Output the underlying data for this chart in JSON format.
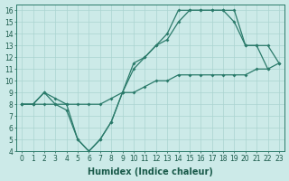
{
  "xlabel": "Humidex (Indice chaleur)",
  "bg_color": "#cceae8",
  "line_color": "#2a7a6a",
  "xlim": [
    -0.5,
    23.5
  ],
  "ylim": [
    4,
    16.5
  ],
  "yticks": [
    4,
    5,
    6,
    7,
    8,
    9,
    10,
    11,
    12,
    13,
    14,
    15,
    16
  ],
  "xticks": [
    0,
    1,
    2,
    3,
    4,
    5,
    6,
    7,
    8,
    9,
    10,
    11,
    12,
    13,
    14,
    15,
    16,
    17,
    18,
    19,
    20,
    21,
    22,
    23
  ],
  "line1_x": [
    0,
    1,
    2,
    3,
    4,
    5,
    6,
    7,
    8,
    9,
    10,
    11,
    12,
    13,
    14,
    15,
    16,
    17,
    18,
    19,
    20,
    21,
    22,
    23
  ],
  "line1_y": [
    8,
    8,
    8,
    8,
    8,
    8,
    8,
    8,
    8.5,
    9,
    9,
    9.5,
    10,
    10,
    10.5,
    10.5,
    10.5,
    10.5,
    10.5,
    10.5,
    10.5,
    11,
    11,
    11.5
  ],
  "line2_x": [
    0,
    1,
    2,
    3,
    4,
    5,
    6,
    7,
    8,
    9,
    10,
    11,
    12,
    13,
    14,
    15,
    16,
    17,
    18,
    19,
    20,
    21,
    22
  ],
  "line2_y": [
    8,
    8,
    9,
    8,
    7.5,
    5,
    4,
    5,
    6.5,
    9,
    11,
    12,
    13,
    13.5,
    15,
    16,
    16,
    16,
    16,
    15,
    13,
    13,
    11
  ],
  "line3_x": [
    0,
    1,
    2,
    3,
    4,
    5,
    6,
    7,
    8,
    9,
    10,
    11,
    12,
    13,
    14,
    15,
    16,
    17,
    18,
    19,
    20,
    21,
    22,
    23
  ],
  "line3_y": [
    8,
    8,
    9,
    8.5,
    8,
    5,
    4,
    5,
    6.5,
    9,
    11.5,
    12,
    13,
    14,
    16,
    16,
    16,
    16,
    16,
    16,
    13,
    13,
    13,
    11.5
  ],
  "grid_color": "#aad4d0",
  "tick_fontsize": 5.5,
  "xlabel_fontsize": 7.0
}
